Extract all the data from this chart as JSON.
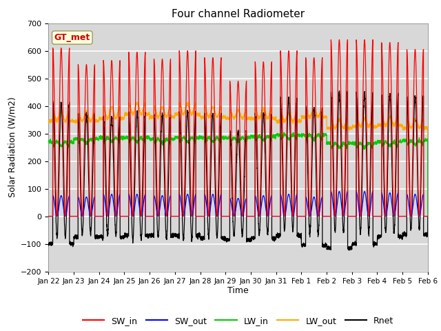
{
  "title": "Four channel Radiometer",
  "xlabel": "Time",
  "ylabel": "Solar Radiation (W/m2)",
  "ylim": [
    -200,
    700
  ],
  "yticks": [
    -200,
    -100,
    0,
    100,
    200,
    300,
    400,
    500,
    600,
    700
  ],
  "annotation": "GT_met",
  "annotation_color": "#cc0000",
  "annotation_bg": "#ffffdd",
  "plot_bg": "#d8d8d8",
  "grid_color": "#ffffff",
  "colors": {
    "SW_in": "#ff0000",
    "SW_out": "#0000ff",
    "LW_in": "#00cc00",
    "LW_out": "#ffaa00",
    "Rnet": "#000000"
  },
  "xtick_labels": [
    "Jan 22",
    "Jan 23",
    "Jan 24",
    "Jan 25",
    "Jan 26",
    "Jan 27",
    "Jan 28",
    "Jan 29",
    "Jan 30",
    "Jan 31",
    "Feb 1",
    "Feb 2",
    "Feb 3",
    "Feb 4",
    "Feb 5",
    "Feb 6"
  ],
  "n_days": 15,
  "pts_per_day": 288,
  "SW_in_peaks": [
    610,
    550,
    565,
    595,
    570,
    600,
    575,
    490,
    560,
    600,
    575,
    640,
    640,
    630,
    605
  ],
  "SW_out_peaks": [
    75,
    70,
    80,
    80,
    75,
    80,
    80,
    65,
    75,
    80,
    70,
    90,
    90,
    85,
    80
  ],
  "LW_in_base": [
    270,
    280,
    285,
    285,
    280,
    285,
    285,
    285,
    290,
    295,
    295,
    265,
    265,
    270,
    275
  ],
  "LW_in_day_dip": [
    -15,
    -15,
    -15,
    -15,
    -15,
    -15,
    -15,
    -15,
    -15,
    -15,
    -15,
    -15,
    -15,
    -15,
    -15
  ],
  "LW_out_base": [
    345,
    345,
    355,
    370,
    360,
    370,
    360,
    355,
    355,
    345,
    360,
    320,
    325,
    330,
    320
  ],
  "LW_out_day_peak": [
    35,
    30,
    40,
    40,
    35,
    40,
    35,
    30,
    35,
    30,
    30,
    30,
    30,
    30,
    30
  ],
  "night_Rnet": [
    -100,
    -75,
    -75,
    -70,
    -70,
    -70,
    -80,
    -85,
    -80,
    -70,
    -105,
    -115,
    -100,
    -75,
    -65
  ],
  "figsize": [
    6.4,
    4.8
  ],
  "dpi": 100
}
